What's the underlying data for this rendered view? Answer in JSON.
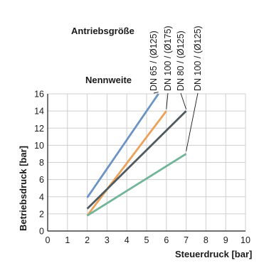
{
  "chart_data": {
    "type": "line",
    "header_labels": {
      "antriebsgroesse": "Antriebsgröße",
      "nennweite": "Nennweite"
    },
    "xlabel": "Steuerdruck [bar]",
    "ylabel": "Betriebsdruck [bar]",
    "xlim": [
      0,
      10
    ],
    "ylim": [
      0,
      16
    ],
    "xticks": [
      "0",
      "1",
      "2",
      "3",
      "4",
      "5",
      "6",
      "7",
      "8",
      "9",
      "10"
    ],
    "yticks": [
      "0",
      "2",
      "4",
      "6",
      "8",
      "10",
      "12",
      "14",
      "16"
    ],
    "grid": true,
    "series": [
      {
        "name": "DN 65 /   (Ø125)",
        "color": "#6b93c4",
        "x": [
          2,
          5.6
        ],
        "y": [
          3.9,
          16
        ]
      },
      {
        "name": "DN 100 / (Ø175)",
        "color": "#eba35b",
        "x": [
          2,
          6
        ],
        "y": [
          1.8,
          14
        ]
      },
      {
        "name": "DN 80 /   (Ø125)",
        "color": "#4f5b5f",
        "x": [
          2,
          7
        ],
        "y": [
          2.6,
          14
        ]
      },
      {
        "name": "DN 100 / (Ø125)",
        "color": "#74b59a",
        "x": [
          2,
          7
        ],
        "y": [
          1.8,
          9
        ]
      }
    ]
  }
}
